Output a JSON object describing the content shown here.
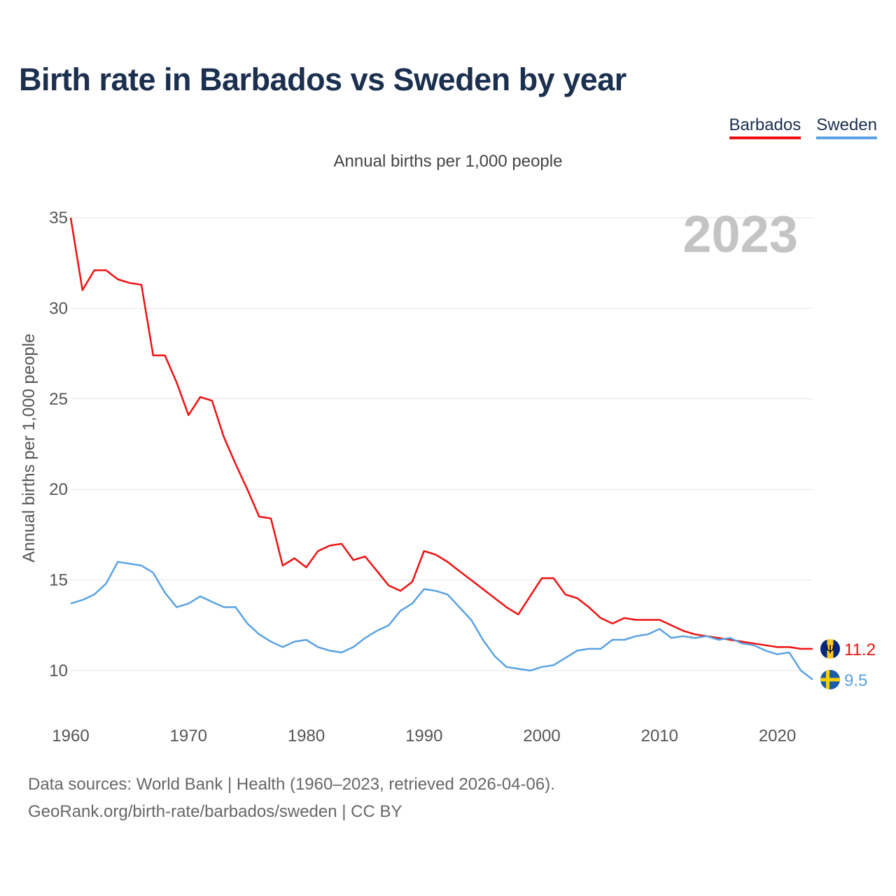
{
  "title": "Birth rate in Barbados vs Sweden by year",
  "subtitle": "Annual births per 1,000 people",
  "year_overlay": "2023",
  "legend": [
    {
      "name": "Barbados",
      "color": "#ee1111"
    },
    {
      "name": "Sweden",
      "color": "#5aa2e2"
    }
  ],
  "footer": {
    "line1": "Data sources: World Bank | Health (1960–2023, retrieved 2026-04-06).",
    "line2": "GeoRank.org/birth-rate/barbados/sweden | CC BY"
  },
  "chart_data": {
    "type": "line",
    "title": "Birth rate in Barbados vs Sweden by year",
    "xlabel": "",
    "ylabel": "Annual births per 1,000 people",
    "xlim": [
      1960,
      2023
    ],
    "ylim": [
      8,
      35
    ],
    "xticks": [
      1960,
      1970,
      1980,
      1990,
      2000,
      2010,
      2020
    ],
    "yticks": [
      10,
      15,
      20,
      25,
      30,
      35
    ],
    "grid": true,
    "legend_position": "top-right",
    "x": [
      1960,
      1961,
      1962,
      1963,
      1964,
      1965,
      1966,
      1967,
      1968,
      1969,
      1970,
      1971,
      1972,
      1973,
      1974,
      1975,
      1976,
      1977,
      1978,
      1979,
      1980,
      1981,
      1982,
      1983,
      1984,
      1985,
      1986,
      1987,
      1988,
      1989,
      1990,
      1991,
      1992,
      1993,
      1994,
      1995,
      1996,
      1997,
      1998,
      1999,
      2000,
      2001,
      2002,
      2003,
      2004,
      2005,
      2006,
      2007,
      2008,
      2009,
      2010,
      2011,
      2012,
      2013,
      2014,
      2015,
      2016,
      2017,
      2018,
      2019,
      2020,
      2021,
      2022,
      2023
    ],
    "series": [
      {
        "name": "Barbados",
        "color": "#ee1111",
        "end_label": "11.2",
        "flag": "barbados-flag",
        "values": [
          35.0,
          31.0,
          32.1,
          32.1,
          31.6,
          31.4,
          31.3,
          27.4,
          27.4,
          25.9,
          24.1,
          25.1,
          24.9,
          22.9,
          21.4,
          20.0,
          18.5,
          18.4,
          15.8,
          16.2,
          15.7,
          16.6,
          16.9,
          17.0,
          16.1,
          16.3,
          15.5,
          14.7,
          14.4,
          14.9,
          16.6,
          16.4,
          16.0,
          15.5,
          15.0,
          14.5,
          14.0,
          13.5,
          13.1,
          14.1,
          15.1,
          15.1,
          14.2,
          14.0,
          13.5,
          12.9,
          12.6,
          12.9,
          12.8,
          12.8,
          12.8,
          12.5,
          12.2,
          12.0,
          11.9,
          11.8,
          11.7,
          11.6,
          11.5,
          11.4,
          11.3,
          11.3,
          11.2,
          11.2
        ]
      },
      {
        "name": "Sweden",
        "color": "#5aa2e2",
        "end_label": "9.5",
        "flag": "sweden-flag",
        "values": [
          13.7,
          13.9,
          14.2,
          14.8,
          16.0,
          15.9,
          15.8,
          15.4,
          14.3,
          13.5,
          13.7,
          14.1,
          13.8,
          13.5,
          13.5,
          12.6,
          12.0,
          11.6,
          11.3,
          11.6,
          11.7,
          11.3,
          11.1,
          11.0,
          11.3,
          11.8,
          12.2,
          12.5,
          13.3,
          13.7,
          14.5,
          14.4,
          14.2,
          13.5,
          12.8,
          11.7,
          10.8,
          10.2,
          10.1,
          10.0,
          10.2,
          10.3,
          10.7,
          11.1,
          11.2,
          11.2,
          11.7,
          11.7,
          11.9,
          12.0,
          12.3,
          11.8,
          11.9,
          11.8,
          11.9,
          11.7,
          11.8,
          11.5,
          11.4,
          11.1,
          10.9,
          11.0,
          10.0,
          9.5
        ]
      }
    ]
  }
}
